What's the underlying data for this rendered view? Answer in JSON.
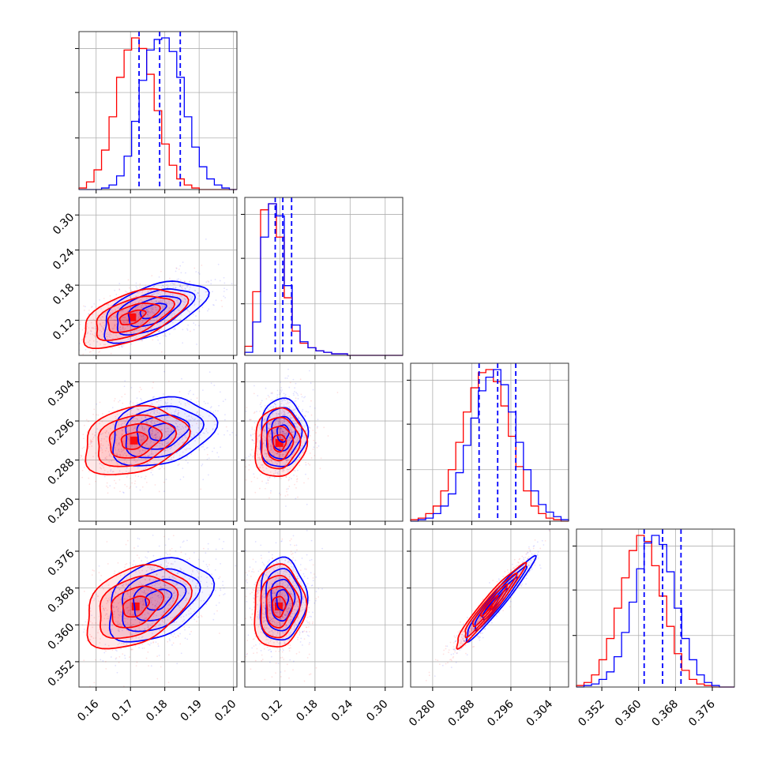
{
  "chart_data": {
    "type": "corner",
    "title": "",
    "colors": {
      "series_a": "#0000ff",
      "series_b": "#ff0000"
    },
    "grid": true,
    "params": [
      {
        "range": [
          0.155,
          0.201
        ],
        "ticks": [
          0.16,
          0.17,
          0.18,
          0.19,
          0.2
        ],
        "tick_labels": [
          "0.16",
          "0.17",
          "0.18",
          "0.19",
          "0.20"
        ],
        "quantiles_blue": [
          0.1725,
          0.1785,
          0.1845
        ],
        "hist_blue": [
          0,
          0,
          0,
          1,
          3,
          9,
          22,
          45,
          72,
          92,
          99,
          100,
          91,
          74,
          48,
          28,
          15,
          7,
          3,
          1,
          0
        ],
        "hist_red": [
          1,
          5,
          13,
          26,
          48,
          74,
          92,
          100,
          93,
          76,
          52,
          30,
          16,
          7,
          3,
          1,
          0,
          0,
          0,
          0,
          0
        ]
      },
      {
        "range": [
          0.06,
          0.33
        ],
        "ticks": [
          0.12,
          0.18,
          0.24,
          0.3
        ],
        "tick_labels": [
          "0.12",
          "0.18",
          "0.24",
          "0.30"
        ],
        "quantiles_blue": [
          0.112,
          0.125,
          0.14
        ],
        "hist_blue": [
          2,
          22,
          78,
          100,
          92,
          46,
          20,
          9,
          5,
          3,
          2,
          1,
          1,
          0,
          0,
          0,
          0,
          0,
          0,
          0
        ],
        "hist_red": [
          6,
          42,
          96,
          100,
          78,
          38,
          16,
          8,
          5,
          3,
          2,
          1,
          1,
          0,
          0,
          0,
          0,
          0,
          0,
          0
        ]
      },
      {
        "range": [
          0.2755,
          0.3078
        ],
        "ticks": [
          0.28,
          0.288,
          0.296,
          0.304
        ],
        "tick_labels": [
          "0.280",
          "0.288",
          "0.296",
          "0.304"
        ],
        "quantiles_blue": [
          0.2895,
          0.2933,
          0.297
        ],
        "hist_blue": [
          0,
          1,
          2,
          5,
          10,
          18,
          32,
          50,
          68,
          86,
          95,
          100,
          90,
          72,
          52,
          34,
          20,
          11,
          6,
          3,
          1
        ],
        "hist_red": [
          1,
          2,
          5,
          10,
          20,
          34,
          52,
          72,
          88,
          98,
          100,
          92,
          76,
          56,
          36,
          20,
          10,
          5,
          2,
          1,
          0
        ]
      },
      {
        "range": [
          0.3465,
          0.3808
        ],
        "ticks": [
          0.352,
          0.36,
          0.368,
          0.376
        ],
        "tick_labels": [
          "0.352",
          "0.360",
          "0.368",
          "0.376"
        ],
        "quantiles_blue": [
          0.3612,
          0.3652,
          0.3692
        ],
        "hist_blue": [
          0,
          1,
          2,
          5,
          10,
          20,
          36,
          56,
          78,
          95,
          100,
          94,
          76,
          52,
          32,
          18,
          8,
          3,
          1,
          0,
          0
        ],
        "hist_red": [
          1,
          3,
          8,
          18,
          32,
          52,
          72,
          90,
          100,
          96,
          80,
          60,
          40,
          22,
          11,
          5,
          2,
          1,
          0,
          0,
          0
        ]
      }
    ],
    "pairs": [
      {
        "row": 1,
        "col": 0,
        "blue": {
          "mean": [
            0.1765,
            0.136
          ],
          "sd": [
            0.0075,
            0.026
          ],
          "rho": 0.55
        },
        "red": {
          "mean": [
            0.1705,
            0.125
          ],
          "sd": [
            0.0075,
            0.025
          ],
          "rho": 0.55
        }
      },
      {
        "row": 2,
        "col": 0,
        "blue": {
          "mean": [
            0.179,
            0.2938
          ],
          "sd": [
            0.0075,
            0.0035
          ],
          "rho": 0.25
        },
        "red": {
          "mean": [
            0.171,
            0.292
          ],
          "sd": [
            0.0075,
            0.0035
          ],
          "rho": 0.25
        }
      },
      {
        "row": 2,
        "col": 1,
        "blue": {
          "mean": [
            0.125,
            0.2935
          ],
          "sd": [
            0.02,
            0.0035
          ],
          "rho": 0.05
        },
        "red": {
          "mean": [
            0.119,
            0.2915
          ],
          "sd": [
            0.022,
            0.0035
          ],
          "rho": 0.05
        }
      },
      {
        "row": 3,
        "col": 0,
        "blue": {
          "mean": [
            0.178,
            0.3655
          ],
          "sd": [
            0.0075,
            0.0045
          ],
          "rho": 0.35
        },
        "red": {
          "mean": [
            0.1715,
            0.364
          ],
          "sd": [
            0.0075,
            0.0045
          ],
          "rho": 0.35
        }
      },
      {
        "row": 3,
        "col": 1,
        "blue": {
          "mean": [
            0.124,
            0.3655
          ],
          "sd": [
            0.02,
            0.0045
          ],
          "rho": 0.05
        },
        "red": {
          "mean": [
            0.118,
            0.364
          ],
          "sd": [
            0.022,
            0.0045
          ],
          "rho": 0.05
        }
      },
      {
        "row": 3,
        "col": 2,
        "blue": {
          "mean": [
            0.2935,
            0.3655
          ],
          "sd": [
            0.0035,
            0.0045
          ],
          "rho": 0.96
        },
        "red": {
          "mean": [
            0.2915,
            0.364
          ],
          "sd": [
            0.0035,
            0.0045
          ],
          "rho": 0.96
        }
      }
    ],
    "contour_levels_sigma": [
      0.5,
      1.0,
      1.5,
      2.0
    ]
  }
}
